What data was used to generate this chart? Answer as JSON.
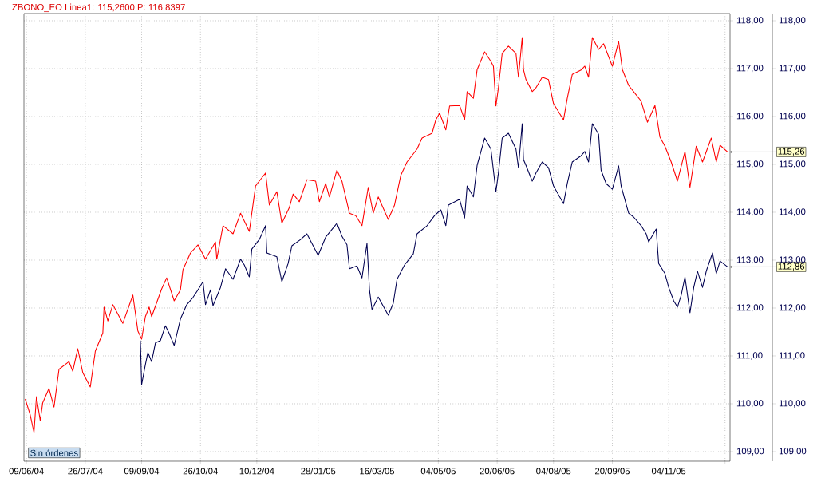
{
  "chart_data": {
    "type": "line",
    "title": "ZBONO_EO  Linea1: 115,2600  P: 116,8397",
    "xlim": [
      "2004-06-07",
      "2005-12-23"
    ],
    "ylim": [
      108.8,
      118.15
    ],
    "y2lim": [
      108.8,
      118.15
    ],
    "xticks": [
      {
        "value": "2004-06-09",
        "label": "09/06/04"
      },
      {
        "value": "2004-07-26",
        "label": "26/07/04"
      },
      {
        "value": "2004-09-09",
        "label": "09/09/04"
      },
      {
        "value": "2004-10-26",
        "label": "26/10/04"
      },
      {
        "value": "2004-12-10",
        "label": "10/12/04"
      },
      {
        "value": "2005-01-28",
        "label": "28/01/05"
      },
      {
        "value": "2005-03-16",
        "label": "16/03/05"
      },
      {
        "value": "2005-05-04",
        "label": "04/05/05"
      },
      {
        "value": "2005-06-20",
        "label": "20/06/05"
      },
      {
        "value": "2005-08-04",
        "label": "04/08/05"
      },
      {
        "value": "2005-09-20",
        "label": "20/09/05"
      },
      {
        "value": "2005-11-04",
        "label": "04/11/05"
      },
      {
        "value": "2005-12-19",
        "label": null
      }
    ],
    "yticks": [
      {
        "value": 109,
        "label": "109,00"
      },
      {
        "value": 110,
        "label": "110,00"
      },
      {
        "value": 111,
        "label": "111,00"
      },
      {
        "value": 112,
        "label": "112,00"
      },
      {
        "value": 113,
        "label": "113,00"
      },
      {
        "value": 114,
        "label": "114,00"
      },
      {
        "value": 115,
        "label": "115,00"
      },
      {
        "value": 116,
        "label": "116,00"
      },
      {
        "value": 117,
        "label": "117,00"
      },
      {
        "value": 118,
        "label": "118,00"
      }
    ],
    "y2ticks": [
      {
        "value": 109,
        "label": "109,00"
      },
      {
        "value": 110,
        "label": "110,00"
      },
      {
        "value": 111,
        "label": "111,00"
      },
      {
        "value": 112,
        "label": "112,00"
      },
      {
        "value": 113,
        "label": "113,00"
      },
      {
        "value": 114,
        "label": "114,00"
      },
      {
        "value": 115,
        "label": "115,00"
      },
      {
        "value": 116,
        "label": "116,00"
      },
      {
        "value": 117,
        "label": "117,00"
      },
      {
        "value": 118,
        "label": "118,00"
      }
    ],
    "grid": true,
    "series": [
      {
        "color": "#ff0000",
        "x": [
          "2004-06-08",
          "2004-06-12",
          "2004-06-15",
          "2004-06-17",
          "2004-06-20",
          "2004-06-22",
          "2004-06-27",
          "2004-07-01",
          "2004-07-05",
          "2004-07-13",
          "2004-07-16",
          "2004-07-20",
          "2004-07-24",
          "2004-07-30",
          "2004-08-03",
          "2004-08-09",
          "2004-08-10",
          "2004-08-13",
          "2004-08-17",
          "2004-08-25",
          "2004-09-02",
          "2004-09-06",
          "2004-09-09",
          "2004-09-12",
          "2004-09-15",
          "2004-09-17",
          "2004-09-25",
          "2004-09-29",
          "2004-10-05",
          "2004-10-10",
          "2004-10-12",
          "2004-10-18",
          "2004-10-24",
          "2004-10-30",
          "2004-11-07",
          "2004-11-08",
          "2004-11-13",
          "2004-11-21",
          "2004-11-27",
          "2004-12-04",
          "2004-12-09",
          "2004-12-17",
          "2004-12-20",
          "2004-12-26",
          "2004-12-30",
          "2005-01-05",
          "2005-01-08",
          "2005-01-13",
          "2005-01-19",
          "2005-01-26",
          "2005-01-29",
          "2005-02-03",
          "2005-02-06",
          "2005-02-12",
          "2005-02-16",
          "2005-02-22",
          "2005-02-27",
          "2005-03-04",
          "2005-03-09",
          "2005-03-13",
          "2005-03-17",
          "2005-03-25",
          "2005-03-30",
          "2005-04-04",
          "2005-04-09",
          "2005-04-17",
          "2005-04-21",
          "2005-04-29",
          "2005-05-02",
          "2005-05-05",
          "2005-05-10",
          "2005-05-13",
          "2005-05-21",
          "2005-05-25",
          "2005-05-27",
          "2005-06-01",
          "2005-06-04",
          "2005-06-10",
          "2005-06-15",
          "2005-06-17",
          "2005-06-19",
          "2005-06-21",
          "2005-06-24",
          "2005-06-29",
          "2005-07-05",
          "2005-07-07",
          "2005-07-10",
          "2005-07-11",
          "2005-07-13",
          "2005-07-18",
          "2005-07-21",
          "2005-07-26",
          "2005-07-31",
          "2005-08-04",
          "2005-08-12",
          "2005-08-15",
          "2005-08-19",
          "2005-08-26",
          "2005-08-29",
          "2005-09-01",
          "2005-09-04",
          "2005-09-09",
          "2005-09-13",
          "2005-09-20",
          "2005-09-25",
          "2005-09-28",
          "2005-10-03",
          "2005-10-07",
          "2005-10-13",
          "2005-10-18",
          "2005-10-24",
          "2005-10-28",
          "2005-11-01",
          "2005-11-06",
          "2005-11-11",
          "2005-11-17",
          "2005-11-21",
          "2005-11-26",
          "2005-12-01",
          "2005-12-08",
          "2005-12-12",
          "2005-12-15",
          "2005-12-21"
        ],
        "values": [
          110.1,
          109.77,
          109.4,
          110.15,
          109.65,
          110.02,
          110.32,
          109.93,
          110.72,
          110.88,
          110.68,
          111.15,
          110.65,
          110.35,
          111.1,
          111.48,
          112.02,
          111.73,
          112.07,
          111.68,
          112.27,
          111.52,
          111.35,
          111.82,
          112.02,
          111.82,
          112.4,
          112.63,
          112.15,
          112.38,
          112.8,
          113.15,
          113.32,
          113.02,
          113.38,
          113.02,
          113.72,
          113.55,
          113.98,
          113.6,
          114.55,
          114.82,
          114.15,
          114.43,
          113.77,
          114.1,
          114.38,
          114.22,
          114.68,
          114.65,
          114.22,
          114.6,
          114.32,
          114.88,
          114.65,
          113.98,
          113.93,
          113.72,
          114.52,
          113.98,
          114.32,
          113.85,
          114.15,
          114.77,
          115.05,
          115.32,
          115.55,
          115.65,
          115.93,
          116.07,
          115.72,
          116.22,
          116.23,
          115.93,
          116.52,
          116.38,
          116.98,
          117.35,
          117.15,
          117.05,
          116.22,
          116.6,
          117.32,
          117.47,
          117.32,
          116.82,
          117.65,
          116.98,
          116.77,
          116.52,
          116.6,
          116.82,
          116.77,
          116.27,
          115.93,
          116.38,
          116.88,
          116.97,
          117.05,
          116.82,
          117.65,
          117.4,
          117.52,
          117.05,
          117.57,
          116.98,
          116.65,
          116.52,
          116.32,
          115.88,
          116.23,
          115.57,
          115.38,
          115.05,
          114.65,
          115.27,
          114.52,
          115.38,
          115.05,
          115.55,
          115.05,
          115.4,
          115.26
        ]
      },
      {
        "color": "#000050",
        "x": [
          "2004-09-08",
          "2004-09-09",
          "2004-09-12",
          "2004-09-14",
          "2004-09-17",
          "2004-09-20",
          "2004-09-24",
          "2004-09-28",
          "2004-10-01",
          "2004-10-05",
          "2004-10-10",
          "2004-10-15",
          "2004-10-20",
          "2004-10-24",
          "2004-10-28",
          "2004-10-30",
          "2004-11-03",
          "2004-11-05",
          "2004-11-11",
          "2004-11-15",
          "2004-11-21",
          "2004-11-27",
          "2004-11-30",
          "2004-12-04",
          "2004-12-06",
          "2004-12-12",
          "2004-12-17",
          "2004-12-18",
          "2004-12-26",
          "2004-12-30",
          "2005-01-04",
          "2005-01-07",
          "2005-01-14",
          "2005-01-19",
          "2005-01-28",
          "2005-02-03",
          "2005-02-12",
          "2005-02-16",
          "2005-02-20",
          "2005-02-22",
          "2005-02-28",
          "2005-03-04",
          "2005-03-08",
          "2005-03-10",
          "2005-03-12",
          "2005-03-17",
          "2005-03-25",
          "2005-03-29",
          "2005-04-01",
          "2005-04-07",
          "2005-04-14",
          "2005-04-17",
          "2005-04-25",
          "2005-05-01",
          "2005-05-06",
          "2005-05-10",
          "2005-05-12",
          "2005-05-21",
          "2005-05-25",
          "2005-05-27",
          "2005-06-01",
          "2005-06-04",
          "2005-06-10",
          "2005-06-15",
          "2005-06-19",
          "2005-06-21",
          "2005-06-24",
          "2005-06-29",
          "2005-07-05",
          "2005-07-07",
          "2005-07-10",
          "2005-07-11",
          "2005-07-13",
          "2005-07-18",
          "2005-07-21",
          "2005-07-26",
          "2005-07-31",
          "2005-08-04",
          "2005-08-12",
          "2005-08-15",
          "2005-08-19",
          "2005-08-26",
          "2005-08-29",
          "2005-09-01",
          "2005-09-04",
          "2005-09-09",
          "2005-09-11",
          "2005-09-15",
          "2005-09-20",
          "2005-09-25",
          "2005-09-27",
          "2005-10-03",
          "2005-10-07",
          "2005-10-13",
          "2005-10-17",
          "2005-10-19",
          "2005-10-25",
          "2005-10-27",
          "2005-11-01",
          "2005-11-04",
          "2005-11-08",
          "2005-11-11",
          "2005-11-14",
          "2005-11-17",
          "2005-11-21",
          "2005-11-24",
          "2005-11-27",
          "2005-12-01",
          "2005-12-04",
          "2005-12-09",
          "2005-12-12",
          "2005-12-15",
          "2005-12-21"
        ],
        "values": [
          111.32,
          110.4,
          110.82,
          111.07,
          110.88,
          111.27,
          111.32,
          111.63,
          111.47,
          111.22,
          111.77,
          112.07,
          112.22,
          112.38,
          112.55,
          112.07,
          112.38,
          112.05,
          112.43,
          112.82,
          112.6,
          113.02,
          112.9,
          112.65,
          113.23,
          113.43,
          113.72,
          113.15,
          113.07,
          112.55,
          112.93,
          113.3,
          113.43,
          113.55,
          113.1,
          113.48,
          113.77,
          113.5,
          113.32,
          112.82,
          112.88,
          112.63,
          113.35,
          112.38,
          111.97,
          112.23,
          111.85,
          112.1,
          112.6,
          112.9,
          113.13,
          113.55,
          113.72,
          113.93,
          114.05,
          113.72,
          114.15,
          114.27,
          113.88,
          114.55,
          114.32,
          114.98,
          115.55,
          115.32,
          114.43,
          114.82,
          115.55,
          115.65,
          115.32,
          114.93,
          115.85,
          115.1,
          114.98,
          114.65,
          114.82,
          115.05,
          114.93,
          114.55,
          114.18,
          114.6,
          115.05,
          115.18,
          115.27,
          115.05,
          115.85,
          115.63,
          114.88,
          114.6,
          114.48,
          114.97,
          114.55,
          113.98,
          113.9,
          113.72,
          113.55,
          113.38,
          113.65,
          112.93,
          112.72,
          112.43,
          112.15,
          112.02,
          112.27,
          112.65,
          111.9,
          112.43,
          112.77,
          112.43,
          112.77,
          113.15,
          112.72,
          112.98,
          112.86
        ]
      }
    ],
    "annotations": [
      "Sin órdenes",
      {
        "text": "115,26",
        "x": "2005-12-21",
        "y": 115.26
      },
      {
        "text": "112,86",
        "x": "2005-12-21",
        "y": 112.86
      }
    ]
  }
}
